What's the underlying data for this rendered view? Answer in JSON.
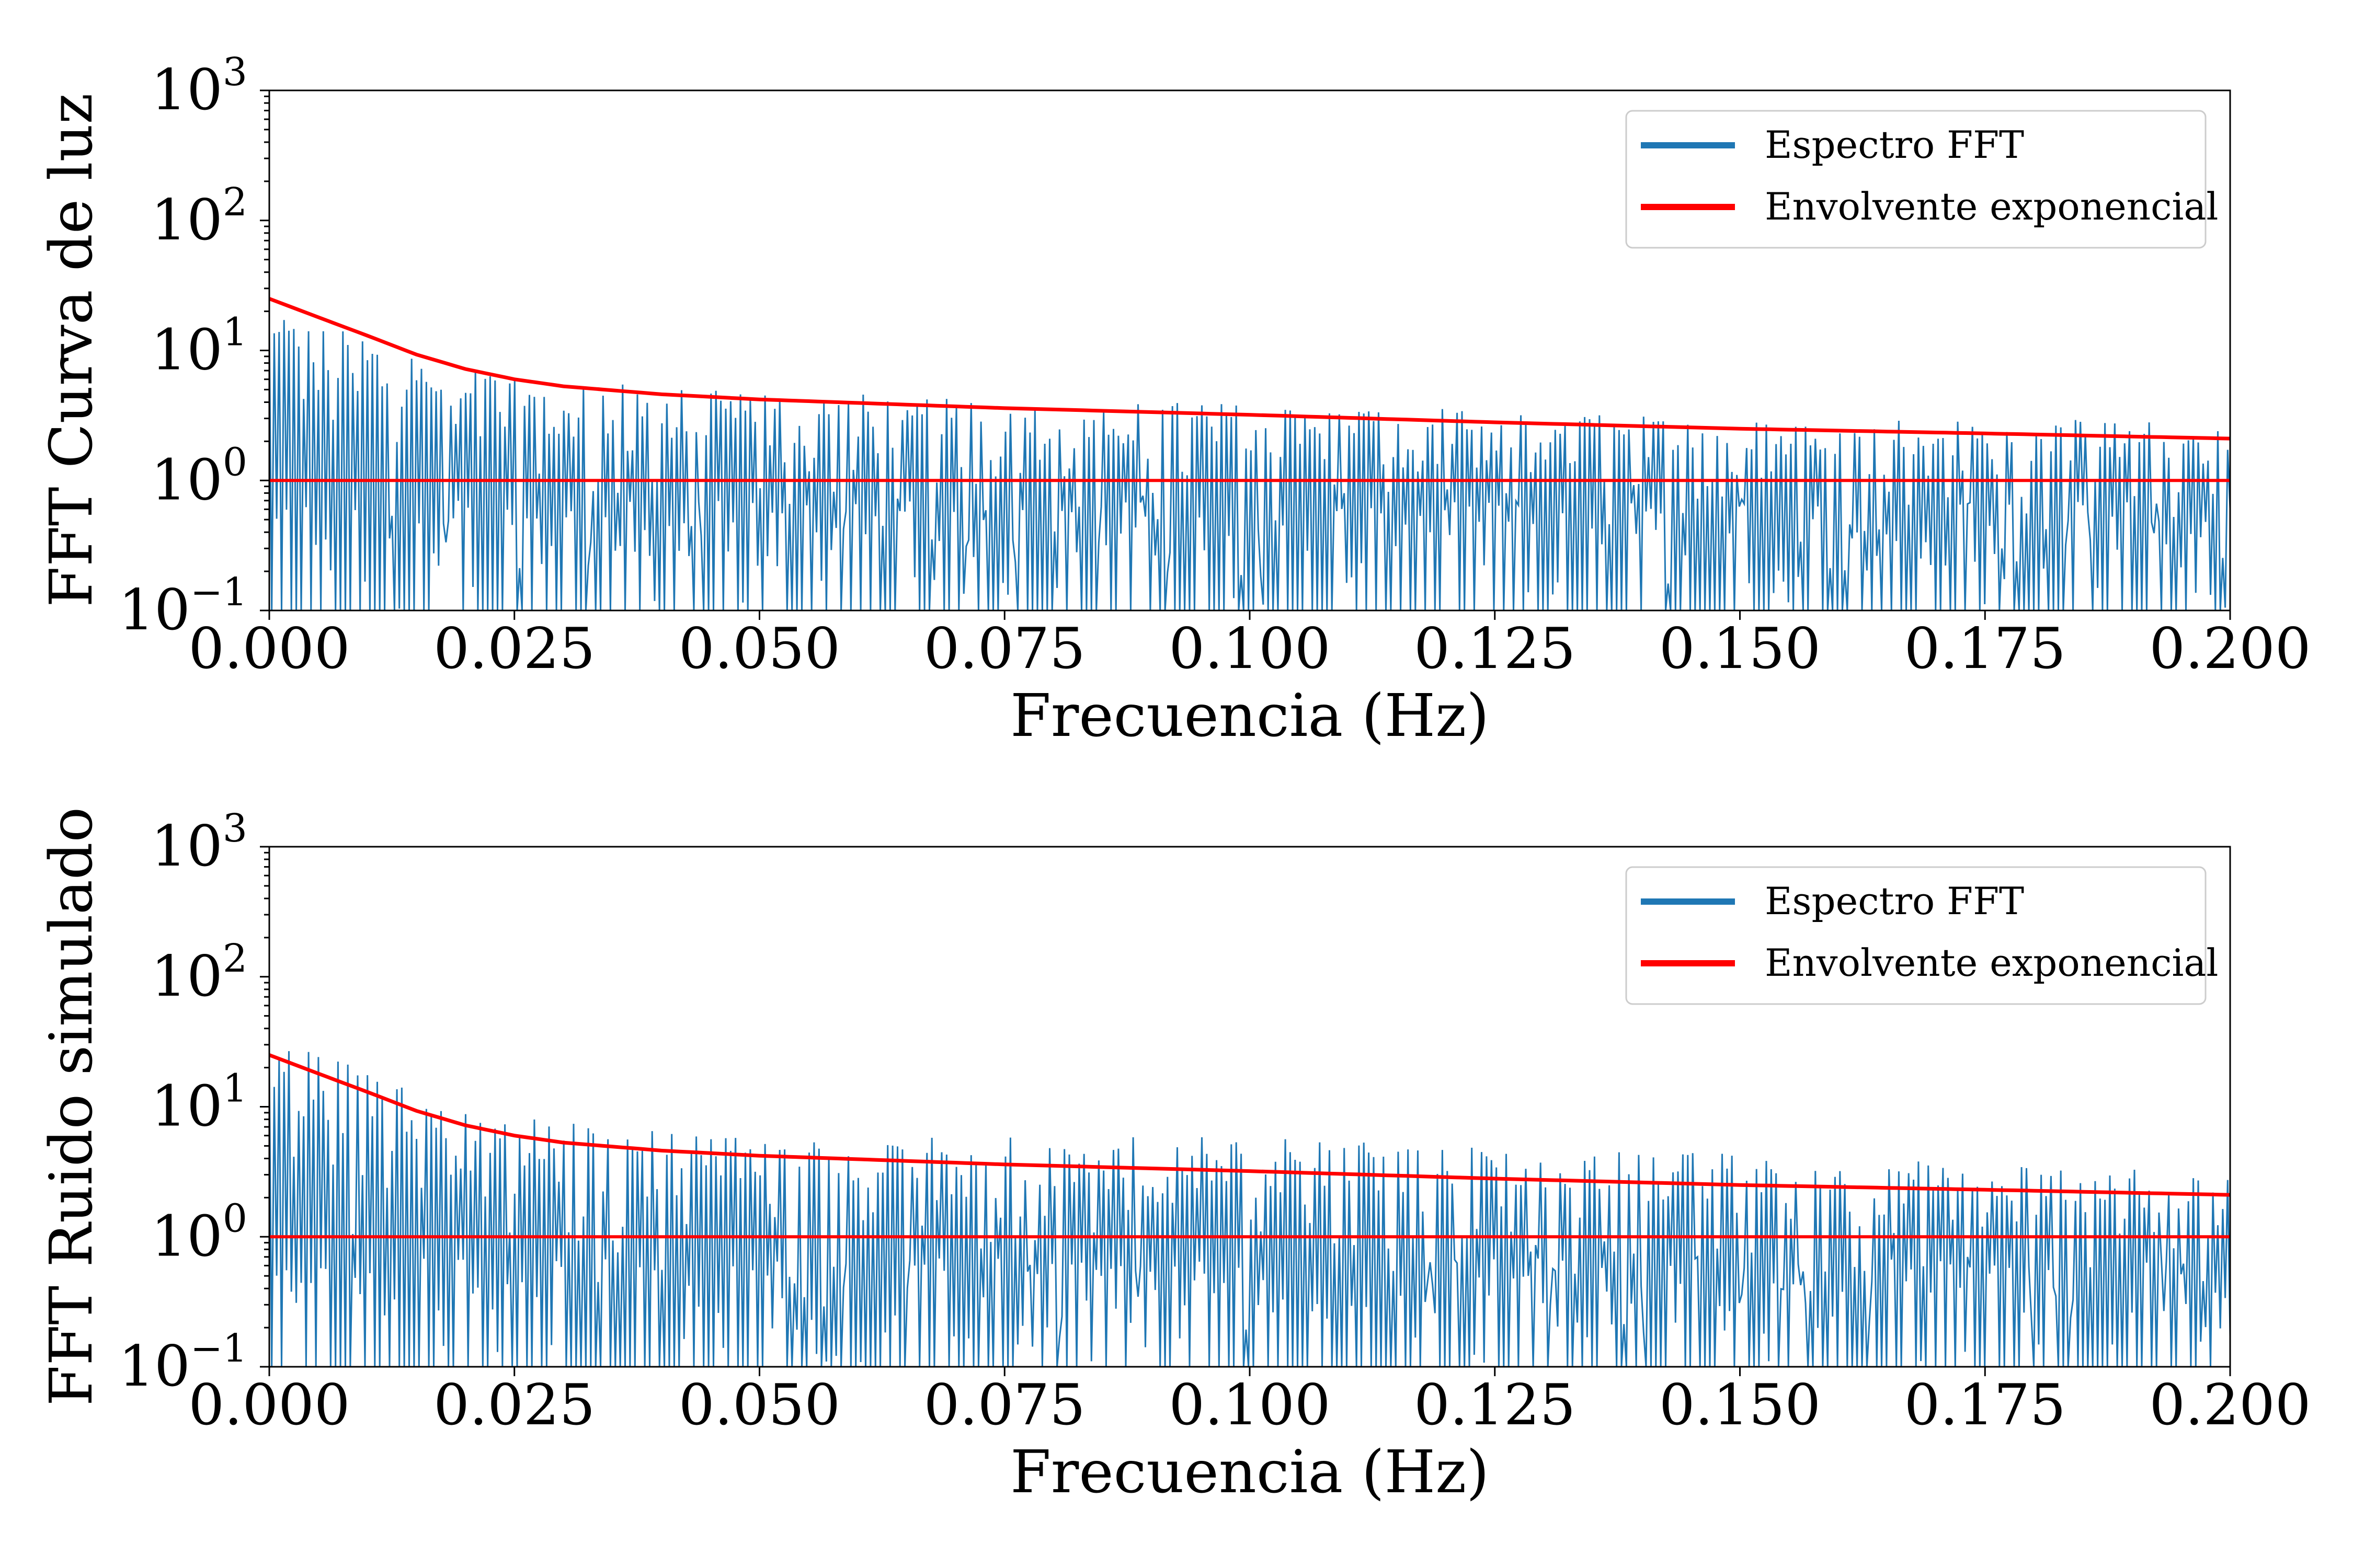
{
  "colors": {
    "spectrum": "#1f77b4",
    "envelope": "#ff0000",
    "axes": "#000000"
  },
  "chart_data": [
    {
      "type": "line",
      "title": "",
      "xlabel": "Frecuencia (Hz)",
      "ylabel": "FFT Curva de luz",
      "xscale": "linear",
      "yscale": "log",
      "xlim": [
        0.0,
        0.2
      ],
      "ylim": [
        0.1,
        1000
      ],
      "xticks": [
        "0.000",
        "0.025",
        "0.050",
        "0.075",
        "0.100",
        "0.125",
        "0.150",
        "0.175",
        "0.200"
      ],
      "yticks": [
        {
          "base": "10",
          "exp": "3"
        },
        {
          "base": "10",
          "exp": "2"
        },
        {
          "base": "10",
          "exp": "1"
        },
        {
          "base": "10",
          "exp": "0"
        },
        {
          "base": "10",
          "exp": "−1"
        }
      ],
      "grid": false,
      "legend_position": "top-right",
      "series": [
        {
          "name": "Espectro FFT",
          "kind": "dense-spectrum",
          "x_range": [
            0.0,
            0.2
          ],
          "n_points": 800,
          "peak_envelope": {
            "x": [
              0.0,
              0.005,
              0.01,
              0.02,
              0.03,
              0.05,
              0.075,
              0.1,
              0.125,
              0.15,
              0.175,
              0.2
            ],
            "y": [
              22,
              16,
              14,
              8,
              6,
              5,
              4.5,
              4,
              3.5,
              3,
              3,
              2.8
            ]
          },
          "min_value": 0.1
        },
        {
          "name": "Envolvente exponencial",
          "x": [
            0.0,
            0.005,
            0.01,
            0.015,
            0.02,
            0.025,
            0.03,
            0.04,
            0.05,
            0.075,
            0.1,
            0.125,
            0.15,
            0.175,
            0.2
          ],
          "y": [
            25,
            18,
            13,
            9.3,
            7.2,
            6.0,
            5.3,
            4.6,
            4.2,
            3.6,
            3.2,
            2.8,
            2.5,
            2.3,
            2.1
          ]
        },
        {
          "name": "",
          "x": [
            0.0,
            0.2
          ],
          "y": [
            1.0,
            1.0
          ]
        }
      ]
    },
    {
      "type": "line",
      "title": "",
      "xlabel": "Frecuencia (Hz)",
      "ylabel": "FFT Ruido simulado",
      "xscale": "linear",
      "yscale": "log",
      "xlim": [
        0.0,
        0.2
      ],
      "ylim": [
        0.1,
        1000
      ],
      "xticks": [
        "0.000",
        "0.025",
        "0.050",
        "0.075",
        "0.100",
        "0.125",
        "0.150",
        "0.175",
        "0.200"
      ],
      "yticks": [
        {
          "base": "10",
          "exp": "3"
        },
        {
          "base": "10",
          "exp": "2"
        },
        {
          "base": "10",
          "exp": "1"
        },
        {
          "base": "10",
          "exp": "0"
        },
        {
          "base": "10",
          "exp": "−1"
        }
      ],
      "grid": false,
      "legend_position": "top-right",
      "series": [
        {
          "name": "Espectro FFT",
          "kind": "dense-spectrum",
          "x_range": [
            0.0,
            0.2
          ],
          "n_points": 800,
          "peak_envelope": {
            "x": [
              0.0,
              0.002,
              0.005,
              0.01,
              0.02,
              0.03,
              0.05,
              0.075,
              0.1,
              0.125,
              0.15,
              0.175,
              0.2
            ],
            "y": [
              40,
              45,
              30,
              20,
              10,
              8,
              6,
              6,
              6,
              5,
              4.5,
              4,
              3
            ]
          },
          "min_value": 0.1
        },
        {
          "name": "Envolvente exponencial",
          "x": [
            0.0,
            0.005,
            0.01,
            0.015,
            0.02,
            0.025,
            0.03,
            0.04,
            0.05,
            0.075,
            0.1,
            0.125,
            0.15,
            0.175,
            0.2
          ],
          "y": [
            25,
            18,
            13,
            9.3,
            7.2,
            6.0,
            5.3,
            4.6,
            4.2,
            3.6,
            3.2,
            2.8,
            2.5,
            2.3,
            2.1
          ]
        },
        {
          "name": "",
          "x": [
            0.0,
            0.2
          ],
          "y": [
            1.0,
            1.0
          ]
        }
      ]
    }
  ]
}
